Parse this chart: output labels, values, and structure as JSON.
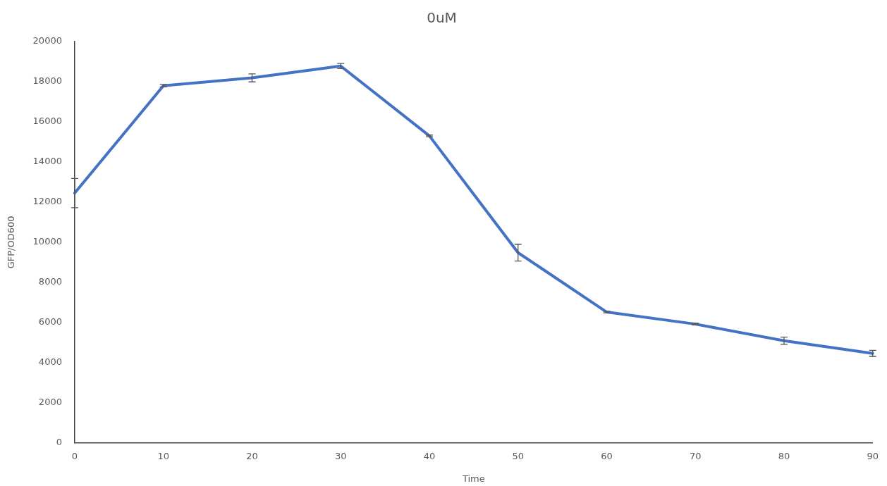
{
  "chart_data": {
    "type": "line",
    "title": "0uM",
    "xlabel": "Time",
    "ylabel": "GFP/OD600",
    "categories": [
      "0",
      "10",
      "20",
      "30",
      "40",
      "50",
      "60",
      "70",
      "80",
      "90"
    ],
    "series": [
      {
        "color": "#4472c4",
        "values": [
          12450,
          17800,
          18190,
          18780,
          15300,
          9480,
          6520,
          5920,
          5090,
          4460
        ],
        "errors": [
          730,
          60,
          200,
          130,
          40,
          420,
          40,
          40,
          180,
          150
        ]
      }
    ],
    "ylim": [
      0,
      20000
    ],
    "yticks": [
      0,
      2000,
      4000,
      6000,
      8000,
      10000,
      12000,
      14000,
      16000,
      18000,
      20000
    ],
    "grid": false,
    "legend": false,
    "marker": "none",
    "line_style": "solid"
  }
}
